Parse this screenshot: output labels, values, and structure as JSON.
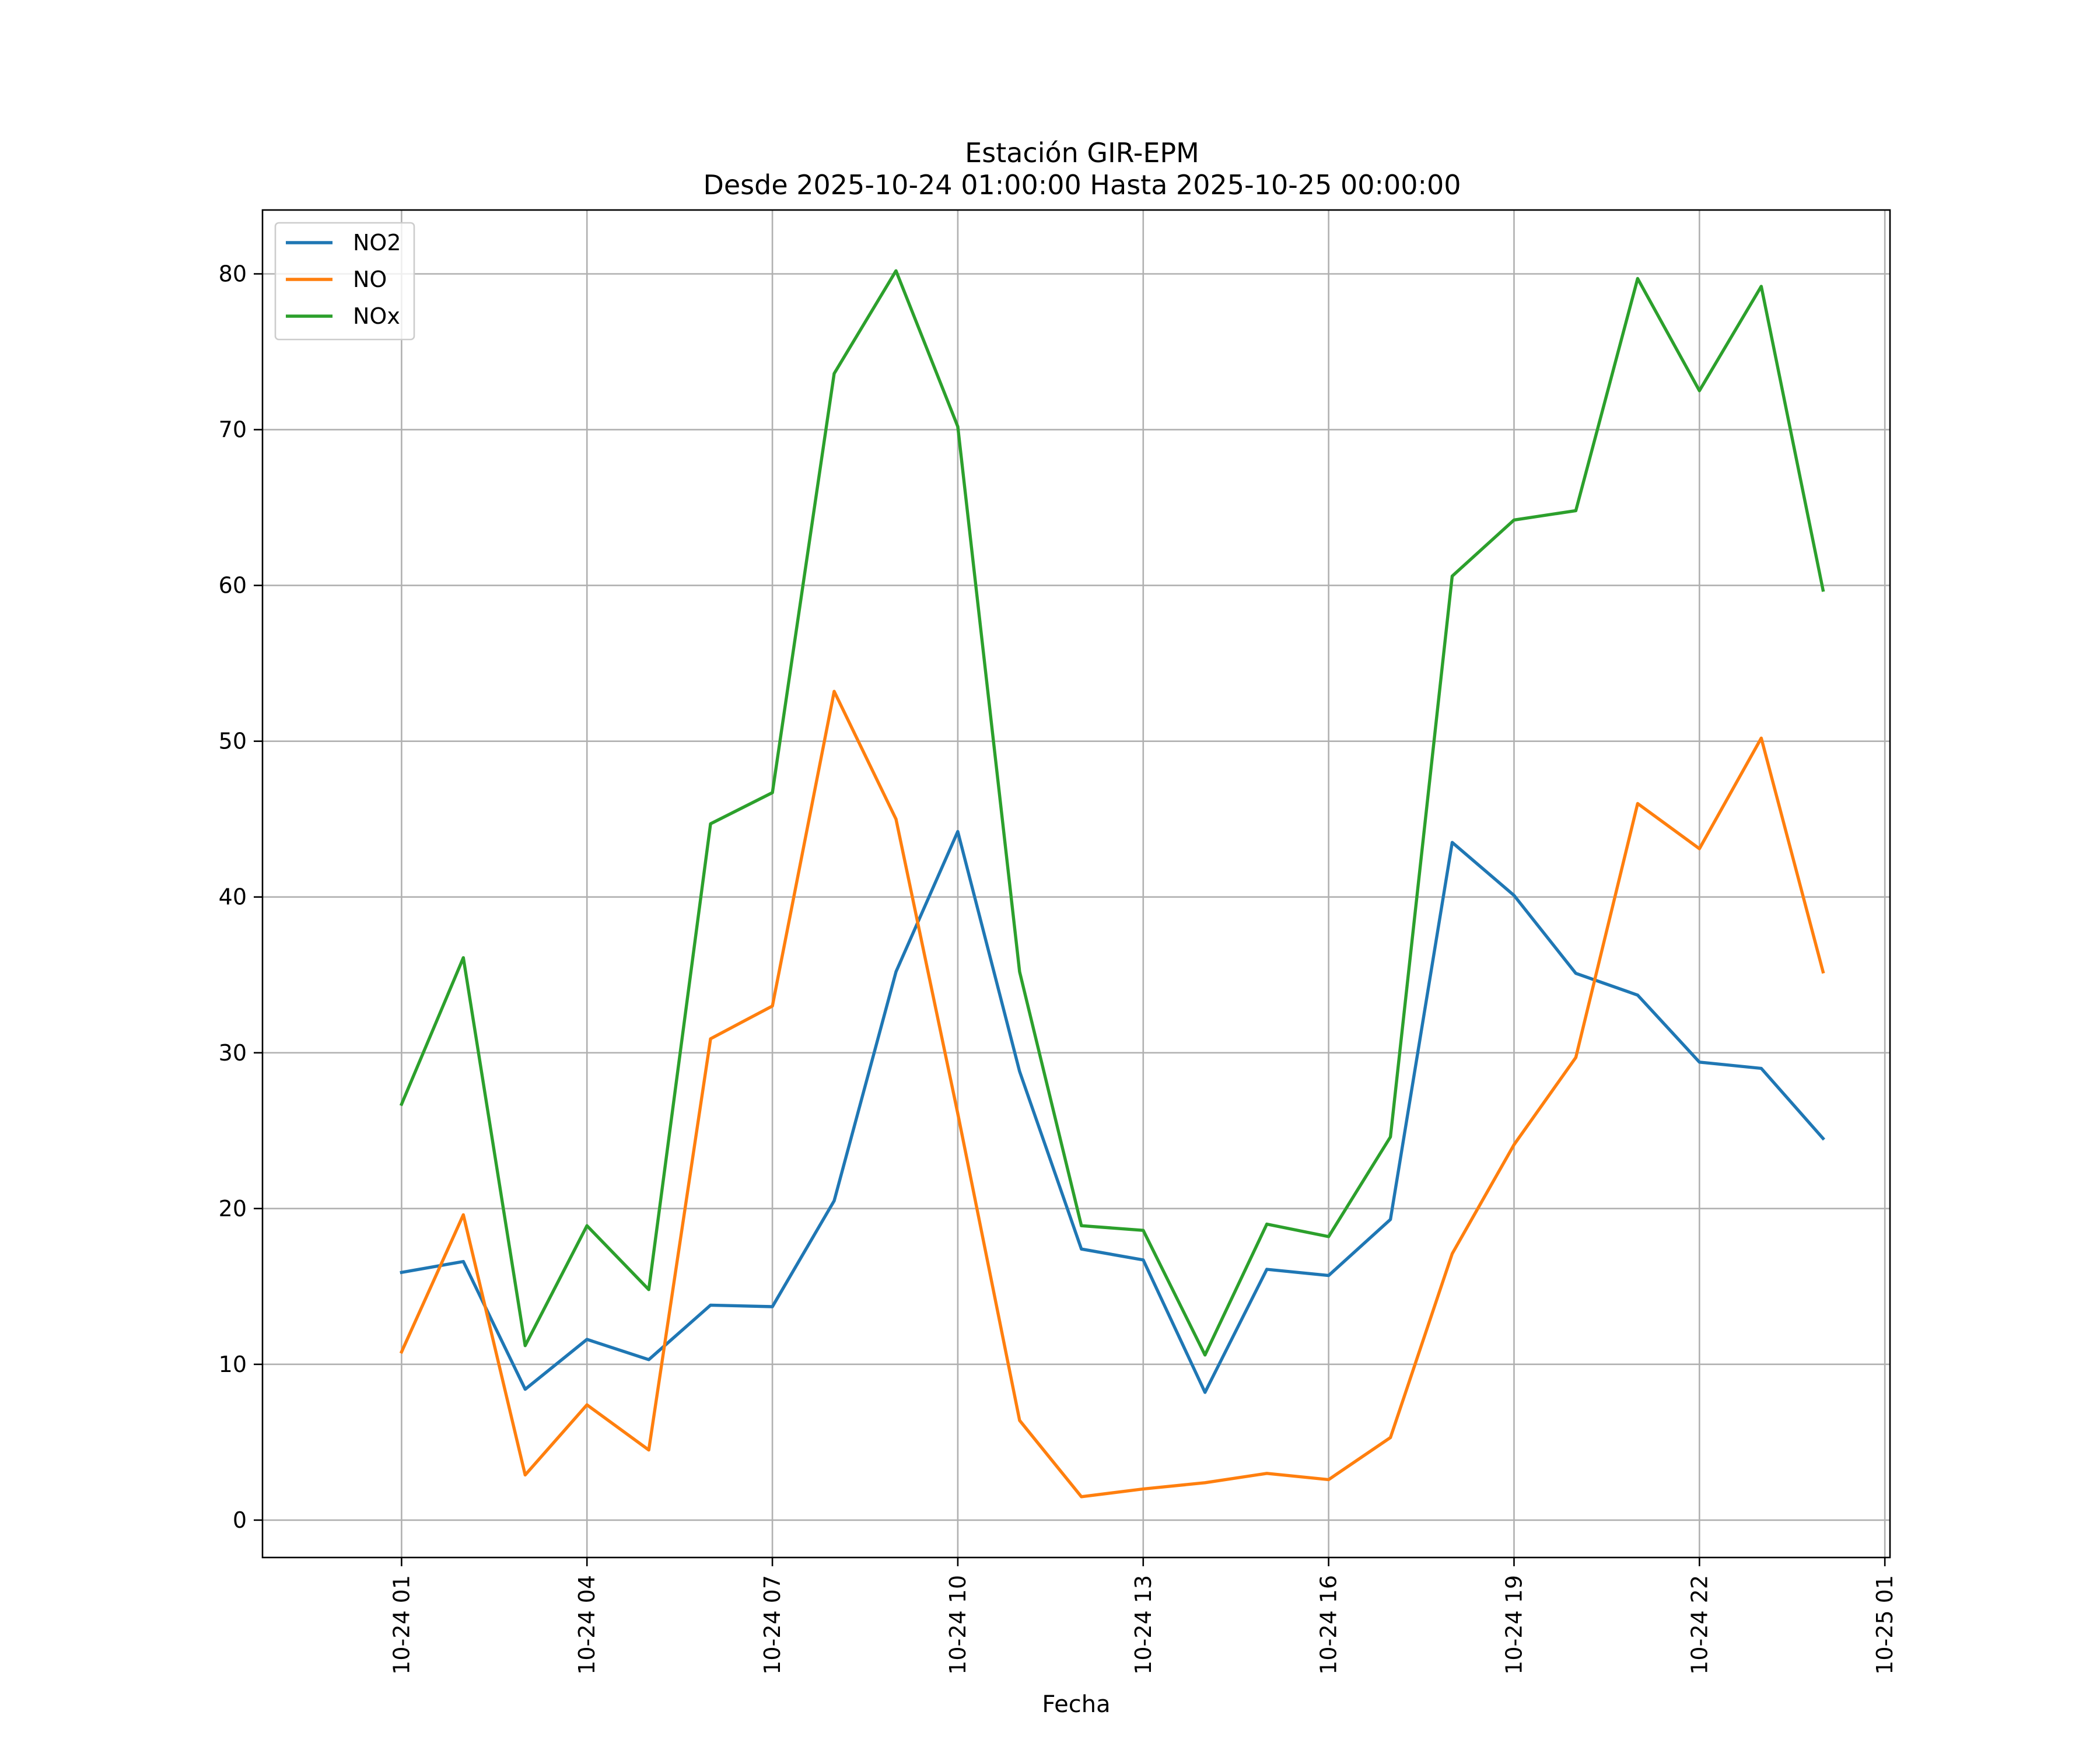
{
  "chart_data": {
    "type": "line",
    "title": "Estación GIR-EPM",
    "subtitle": "Desde 2025-10-24 01:00:00 Hasta 2025-10-25 00:00:00",
    "xlabel": "Fecha",
    "ylabel": "",
    "x": [
      "2025-10-24 01:00",
      "2025-10-24 02:00",
      "2025-10-24 03:00",
      "2025-10-24 04:00",
      "2025-10-24 05:00",
      "2025-10-24 06:00",
      "2025-10-24 07:00",
      "2025-10-24 08:00",
      "2025-10-24 09:00",
      "2025-10-24 10:00",
      "2025-10-24 11:00",
      "2025-10-24 12:00",
      "2025-10-24 13:00",
      "2025-10-24 14:00",
      "2025-10-24 15:00",
      "2025-10-24 16:00",
      "2025-10-24 17:00",
      "2025-10-24 18:00",
      "2025-10-24 19:00",
      "2025-10-24 20:00",
      "2025-10-24 21:00",
      "2025-10-24 22:00",
      "2025-10-24 23:00",
      "2025-10-25 00:00"
    ],
    "series": [
      {
        "name": "NO2",
        "color": "#1f77b4",
        "values": [
          15.9,
          16.6,
          8.4,
          11.6,
          10.3,
          13.8,
          13.7,
          20.5,
          35.2,
          44.2,
          28.8,
          17.4,
          16.7,
          8.2,
          16.1,
          15.7,
          19.3,
          43.5,
          40.1,
          35.1,
          33.7,
          29.4,
          29.0,
          24.5
        ]
      },
      {
        "name": "NO",
        "color": "#ff7f0e",
        "values": [
          10.8,
          19.6,
          2.9,
          7.4,
          4.5,
          30.9,
          33.0,
          53.2,
          45.0,
          26.1,
          6.4,
          1.5,
          2.0,
          2.4,
          3.0,
          2.6,
          5.3,
          17.1,
          24.1,
          29.7,
          46.0,
          43.1,
          50.2,
          35.2
        ]
      },
      {
        "name": "NOx",
        "color": "#2ca02c",
        "values": [
          26.7,
          36.1,
          11.2,
          18.9,
          14.8,
          44.7,
          46.7,
          73.6,
          80.2,
          70.2,
          35.2,
          18.9,
          18.6,
          10.6,
          19.0,
          18.2,
          24.6,
          60.6,
          64.2,
          64.8,
          79.7,
          72.5,
          79.2,
          59.7
        ]
      }
    ],
    "xticks": [
      "10-24 01",
      "10-24 04",
      "10-24 07",
      "10-24 10",
      "10-24 13",
      "10-24 16",
      "10-24 19",
      "10-24 22",
      "10-25 01"
    ],
    "xtick_values": [
      "2025-10-24 01:00",
      "2025-10-24 04:00",
      "2025-10-24 07:00",
      "2025-10-24 10:00",
      "2025-10-24 13:00",
      "2025-10-24 16:00",
      "2025-10-24 19:00",
      "2025-10-24 22:00",
      "2025-10-25 01:00"
    ],
    "xlim": [
      "2025-10-23 22:45",
      "2025-10-25 01:05"
    ],
    "yticks": [
      0,
      10,
      20,
      30,
      40,
      50,
      60,
      70,
      80
    ],
    "ylim": [
      -2.4,
      84.1
    ],
    "grid": true,
    "legend": "upper left"
  }
}
